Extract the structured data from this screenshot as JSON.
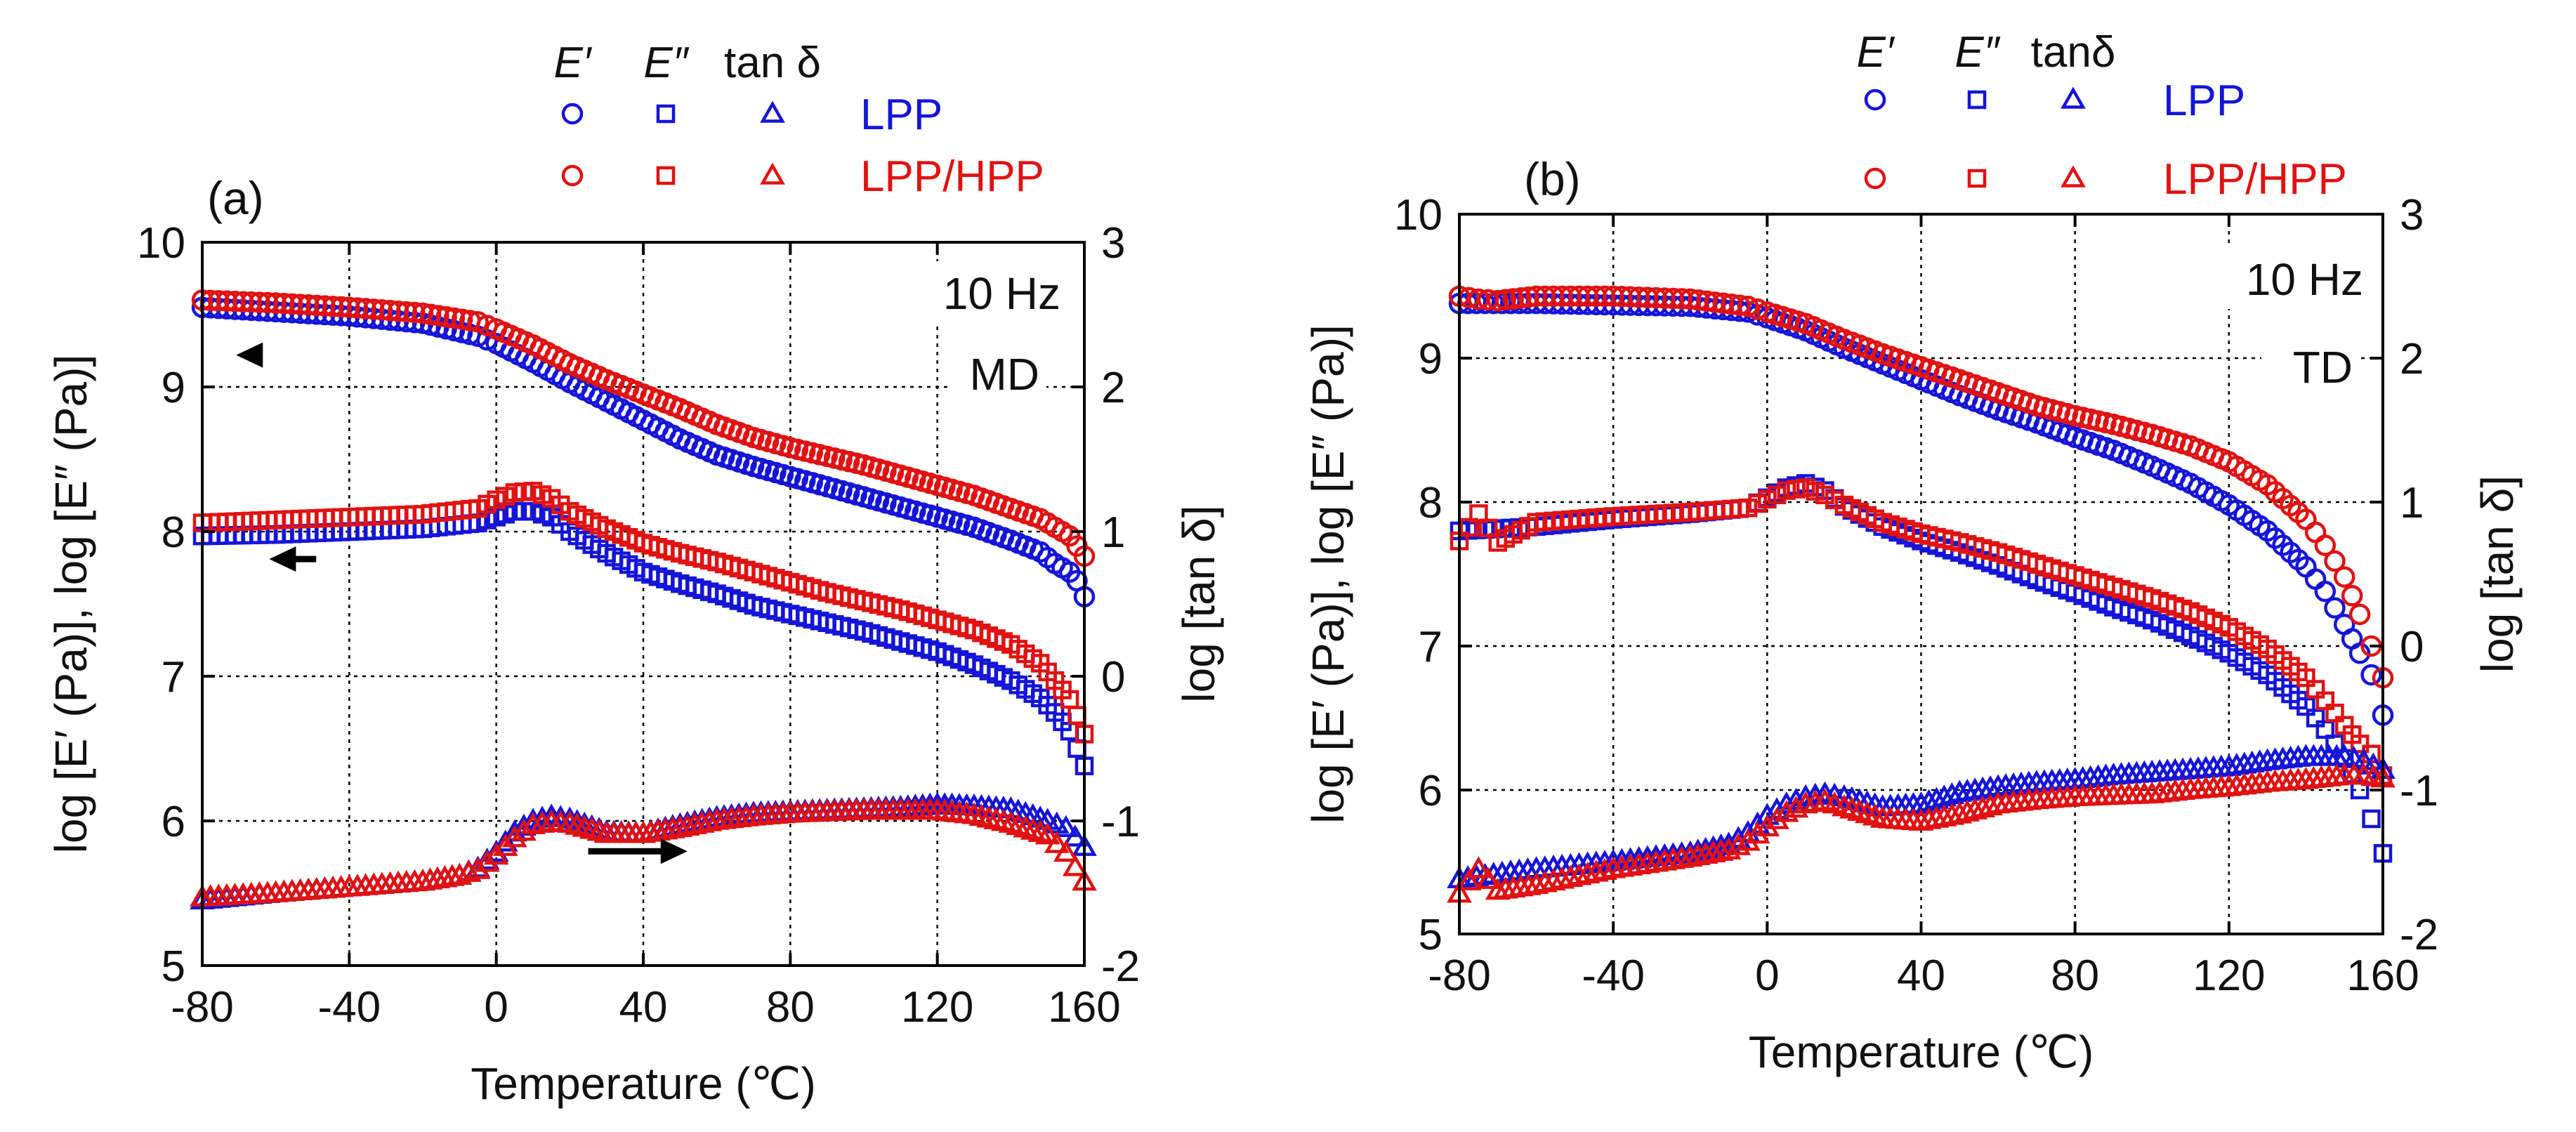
{
  "colors": {
    "lpp": "#1515d8",
    "lpphpp": "#e01212",
    "grid": "#000000",
    "axis": "#000000"
  },
  "chart_data": [
    {
      "type": "scatter",
      "panel_label": "(a)",
      "annotations": [
        "10 Hz",
        "MD"
      ],
      "legend": {
        "symbols": [
          "E′",
          "E″",
          "tan δ"
        ],
        "symbol_icons": [
          "circle-icon",
          "square-icon",
          "triangle-icon"
        ],
        "entries": [
          "LPP",
          "LPP/HPP"
        ]
      },
      "xlabel": "Temperature (℃)",
      "ylabel": "log [E′ (Pa)], log [E″ (Pa)]",
      "y2label": "log [tan δ]",
      "xlim": [
        -80,
        160
      ],
      "ylim": [
        5,
        10
      ],
      "y2lim": [
        -2,
        3
      ],
      "xticks": [
        "-80",
        "-40",
        "0",
        "40",
        "80",
        "120",
        "160"
      ],
      "yticks": [
        "5",
        "6",
        "7",
        "8",
        "9",
        "10"
      ],
      "y2ticks": [
        "-2",
        "-1",
        "0",
        "1",
        "2",
        "3"
      ],
      "grid": true,
      "arrows": [
        "left-E′",
        "left-E″",
        "right-tan δ"
      ],
      "series": [
        {
          "name": "LPP E′",
          "marker": "circle",
          "axis": "left",
          "color": "lpp",
          "x": [
            -80,
            -60,
            -40,
            -20,
            -5,
            0,
            10,
            20,
            30,
            40,
            50,
            60,
            70,
            80,
            90,
            100,
            110,
            120,
            130,
            140,
            148,
            152,
            156,
            158,
            160
          ],
          "y": [
            9.55,
            9.52,
            9.49,
            9.44,
            9.35,
            9.3,
            9.17,
            9.03,
            8.9,
            8.77,
            8.64,
            8.53,
            8.45,
            8.38,
            8.31,
            8.24,
            8.17,
            8.1,
            8.03,
            7.94,
            7.86,
            7.78,
            7.72,
            7.66,
            7.55
          ]
        },
        {
          "name": "LPP/HPP E′",
          "marker": "circle",
          "axis": "left",
          "color": "lpphpp",
          "x": [
            -80,
            -60,
            -40,
            -20,
            -5,
            0,
            10,
            20,
            30,
            40,
            50,
            60,
            70,
            80,
            90,
            100,
            110,
            120,
            130,
            140,
            148,
            152,
            156,
            158,
            160
          ],
          "y": [
            9.6,
            9.58,
            9.55,
            9.51,
            9.45,
            9.4,
            9.29,
            9.16,
            9.05,
            8.95,
            8.85,
            8.74,
            8.65,
            8.58,
            8.52,
            8.46,
            8.39,
            8.32,
            8.25,
            8.16,
            8.09,
            8.03,
            7.97,
            7.9,
            7.83
          ]
        },
        {
          "name": "LPP E″",
          "marker": "square",
          "axis": "left",
          "color": "lpp",
          "x": [
            -80,
            -60,
            -40,
            -20,
            -5,
            0,
            5,
            10,
            15,
            20,
            30,
            40,
            50,
            60,
            70,
            80,
            90,
            100,
            110,
            120,
            130,
            140,
            148,
            152,
            156,
            158,
            160
          ],
          "y": [
            7.97,
            7.98,
            8.0,
            8.02,
            8.06,
            8.1,
            8.14,
            8.14,
            8.1,
            8.0,
            7.85,
            7.72,
            7.64,
            7.57,
            7.49,
            7.43,
            7.37,
            7.31,
            7.24,
            7.17,
            7.08,
            6.97,
            6.85,
            6.75,
            6.62,
            6.5,
            6.38
          ]
        },
        {
          "name": "LPP/HPP E″",
          "marker": "square",
          "axis": "left",
          "color": "lpphpp",
          "x": [
            -80,
            -60,
            -40,
            -20,
            -5,
            0,
            5,
            10,
            15,
            20,
            30,
            40,
            50,
            60,
            70,
            80,
            90,
            100,
            110,
            120,
            130,
            140,
            148,
            152,
            156,
            158,
            160
          ],
          "y": [
            8.06,
            8.08,
            8.1,
            8.12,
            8.16,
            8.22,
            8.27,
            8.28,
            8.23,
            8.14,
            8.02,
            7.92,
            7.85,
            7.79,
            7.72,
            7.65,
            7.58,
            7.52,
            7.46,
            7.39,
            7.32,
            7.22,
            7.09,
            6.97,
            6.84,
            6.73,
            6.6
          ]
        },
        {
          "name": "LPP tan δ",
          "marker": "triangle",
          "axis": "right",
          "color": "lpp",
          "x": [
            -80,
            -60,
            -40,
            -20,
            -10,
            -5,
            0,
            5,
            10,
            15,
            20,
            30,
            40,
            50,
            60,
            70,
            80,
            90,
            100,
            110,
            120,
            130,
            140,
            150,
            155,
            160
          ],
          "y": [
            -1.55,
            -1.5,
            -1.46,
            -1.42,
            -1.38,
            -1.33,
            -1.22,
            -1.08,
            -1.0,
            -0.97,
            -0.99,
            -1.08,
            -1.09,
            -1.03,
            -0.98,
            -0.95,
            -0.94,
            -0.93,
            -0.92,
            -0.91,
            -0.89,
            -0.9,
            -0.92,
            -1.0,
            -1.05,
            -1.18
          ]
        },
        {
          "name": "LPP/HPP tan δ",
          "marker": "triangle",
          "axis": "right",
          "color": "lpphpp",
          "x": [
            -80,
            -60,
            -40,
            -20,
            -10,
            -5,
            0,
            5,
            10,
            15,
            20,
            30,
            40,
            50,
            60,
            70,
            80,
            90,
            100,
            110,
            120,
            130,
            140,
            150,
            155,
            160
          ],
          "y": [
            -1.53,
            -1.5,
            -1.46,
            -1.42,
            -1.38,
            -1.34,
            -1.24,
            -1.12,
            -1.03,
            -1.01,
            -1.02,
            -1.09,
            -1.09,
            -1.05,
            -1.0,
            -0.97,
            -0.95,
            -0.94,
            -0.93,
            -0.93,
            -0.93,
            -0.96,
            -1.02,
            -1.1,
            -1.22,
            -1.42
          ]
        }
      ]
    },
    {
      "type": "scatter",
      "panel_label": "(b)",
      "annotations": [
        "10 Hz",
        "TD"
      ],
      "legend": {
        "symbols": [
          "E′",
          "E″",
          "tanδ"
        ],
        "symbol_icons": [
          "circle-icon",
          "square-icon",
          "triangle-icon"
        ],
        "entries": [
          "LPP",
          "LPP/HPP"
        ]
      },
      "xlabel": "Temperature (℃)",
      "ylabel": "log [E′ (Pa)], log [E″ (Pa)]",
      "y2label": "log [tan δ]",
      "xlim": [
        -80,
        160
      ],
      "ylim": [
        5,
        10
      ],
      "y2lim": [
        -2,
        3
      ],
      "xticks": [
        "-80",
        "-40",
        "0",
        "40",
        "80",
        "120",
        "160"
      ],
      "yticks": [
        "5",
        "6",
        "7",
        "8",
        "9",
        "10"
      ],
      "y2ticks": [
        "-2",
        "-1",
        "0",
        "1",
        "2",
        "3"
      ],
      "grid": true,
      "series": [
        {
          "name": "LPP E′",
          "marker": "circle",
          "axis": "left",
          "color": "lpp",
          "x": [
            -80,
            -60,
            -40,
            -20,
            -5,
            0,
            10,
            20,
            30,
            40,
            50,
            60,
            70,
            80,
            90,
            100,
            110,
            120,
            130,
            140,
            145,
            150,
            154,
            157,
            160
          ],
          "y": [
            9.38,
            9.38,
            9.37,
            9.36,
            9.32,
            9.28,
            9.19,
            9.07,
            8.96,
            8.85,
            8.74,
            8.64,
            8.55,
            8.45,
            8.36,
            8.25,
            8.13,
            7.98,
            7.8,
            7.55,
            7.38,
            7.15,
            6.95,
            6.8,
            6.52
          ]
        },
        {
          "name": "LPP/HPP E′",
          "marker": "circle",
          "axis": "left",
          "color": "lpphpp",
          "x": [
            -80,
            -75,
            -70,
            -60,
            -40,
            -20,
            -5,
            0,
            10,
            20,
            30,
            40,
            50,
            60,
            70,
            80,
            90,
            100,
            110,
            120,
            130,
            140,
            145,
            150,
            154,
            157,
            160
          ],
          "y": [
            9.43,
            9.41,
            9.4,
            9.43,
            9.43,
            9.41,
            9.36,
            9.32,
            9.24,
            9.13,
            9.03,
            8.94,
            8.85,
            8.76,
            8.67,
            8.6,
            8.54,
            8.47,
            8.39,
            8.28,
            8.12,
            7.88,
            7.7,
            7.48,
            7.22,
            7.0,
            6.78
          ]
        },
        {
          "name": "LPP E″",
          "marker": "square",
          "axis": "left",
          "color": "lpp",
          "x": [
            -80,
            -60,
            -40,
            -20,
            -5,
            0,
            5,
            10,
            15,
            20,
            30,
            40,
            50,
            60,
            70,
            80,
            90,
            100,
            110,
            120,
            130,
            140,
            145,
            150,
            154,
            157,
            160
          ],
          "y": [
            7.8,
            7.83,
            7.88,
            7.92,
            7.96,
            8.03,
            8.1,
            8.13,
            8.08,
            7.97,
            7.83,
            7.73,
            7.65,
            7.56,
            7.46,
            7.37,
            7.27,
            7.18,
            7.07,
            6.95,
            6.8,
            6.58,
            6.42,
            6.22,
            6.0,
            5.8,
            5.56
          ]
        },
        {
          "name": "LPP/HPP E″",
          "marker": "square",
          "axis": "left",
          "color": "lpphpp",
          "x": [
            -80,
            -75,
            -70,
            -60,
            -40,
            -20,
            -5,
            0,
            5,
            10,
            15,
            20,
            30,
            40,
            50,
            60,
            70,
            80,
            90,
            100,
            110,
            120,
            130,
            140,
            145,
            150,
            154,
            157,
            160
          ],
          "y": [
            7.73,
            7.92,
            7.72,
            7.86,
            7.9,
            7.93,
            7.96,
            8.02,
            8.08,
            8.1,
            8.05,
            7.98,
            7.86,
            7.78,
            7.72,
            7.65,
            7.57,
            7.49,
            7.41,
            7.33,
            7.24,
            7.13,
            6.98,
            6.78,
            6.62,
            6.45,
            6.32,
            6.25,
            6.1
          ]
        },
        {
          "name": "LPP tan δ",
          "marker": "triangle",
          "axis": "right",
          "color": "lpp",
          "x": [
            -80,
            -60,
            -40,
            -20,
            -10,
            -5,
            0,
            5,
            10,
            15,
            20,
            30,
            40,
            50,
            60,
            70,
            80,
            90,
            100,
            110,
            120,
            130,
            140,
            150,
            155,
            160
          ],
          "y": [
            -1.62,
            -1.55,
            -1.5,
            -1.44,
            -1.38,
            -1.3,
            -1.18,
            -1.1,
            -1.05,
            -1.03,
            -1.05,
            -1.12,
            -1.1,
            -1.02,
            -0.98,
            -0.95,
            -0.93,
            -0.9,
            -0.88,
            -0.86,
            -0.84,
            -0.8,
            -0.77,
            -0.77,
            -0.8,
            -0.86
          ]
        },
        {
          "name": "LPP/HPP tan δ",
          "marker": "triangle",
          "axis": "right",
          "color": "lpphpp",
          "x": [
            -80,
            -75,
            -70,
            -60,
            -40,
            -20,
            -10,
            -5,
            0,
            5,
            10,
            15,
            20,
            30,
            40,
            50,
            60,
            70,
            80,
            90,
            100,
            110,
            120,
            130,
            140,
            150,
            155,
            160
          ],
          "y": [
            -1.72,
            -1.55,
            -1.7,
            -1.66,
            -1.55,
            -1.47,
            -1.42,
            -1.36,
            -1.26,
            -1.16,
            -1.1,
            -1.08,
            -1.12,
            -1.2,
            -1.22,
            -1.17,
            -1.1,
            -1.07,
            -1.05,
            -1.04,
            -1.03,
            -1.0,
            -0.98,
            -0.95,
            -0.93,
            -0.9,
            -0.9,
            -0.92
          ]
        }
      ]
    }
  ]
}
